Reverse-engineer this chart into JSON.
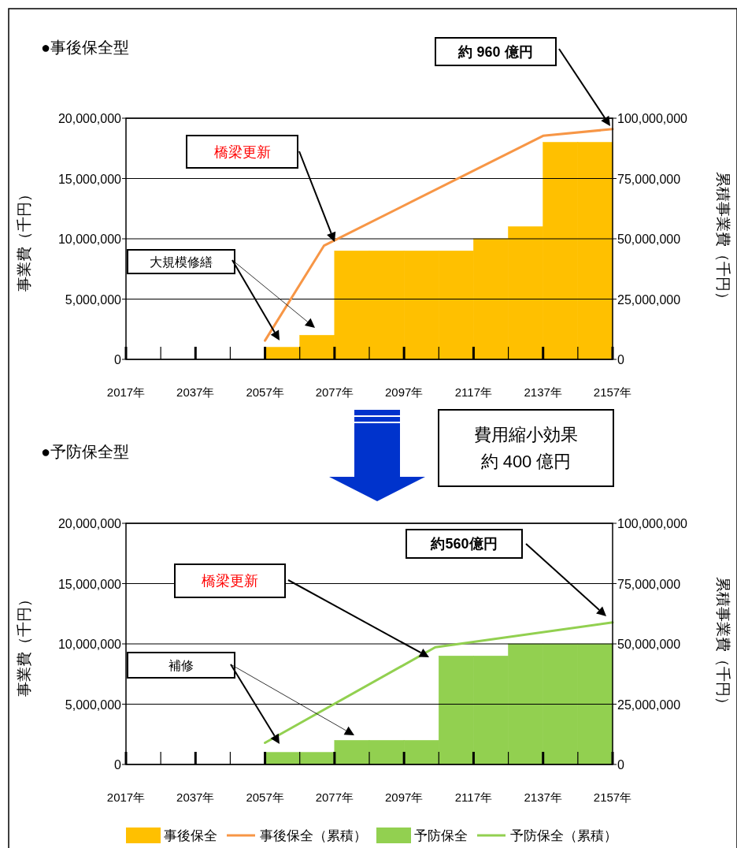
{
  "chart_data": [
    {
      "type": "bar",
      "title": "●事後保全型",
      "ylabel": "事業費（千円）",
      "y2label": "累積事業費（千円）",
      "xlim": [
        2017,
        2157
      ],
      "xticks": [
        {
          "value": 2017,
          "label": "2017年"
        },
        {
          "value": 2027,
          "label": null
        },
        {
          "value": 2037,
          "label": "2037年"
        },
        {
          "value": 2047,
          "label": null
        },
        {
          "value": 2057,
          "label": "2057年"
        },
        {
          "value": 2067,
          "label": null
        },
        {
          "value": 2077,
          "label": "2077年"
        },
        {
          "value": 2087,
          "label": null
        },
        {
          "value": 2097,
          "label": "2097年"
        },
        {
          "value": 2107,
          "label": null
        },
        {
          "value": 2117,
          "label": "2117年"
        },
        {
          "value": 2127,
          "label": null
        },
        {
          "value": 2137,
          "label": "2137年"
        },
        {
          "value": 2147,
          "label": null
        },
        {
          "value": 2157,
          "label": "2157年"
        }
      ],
      "ylim": [
        0,
        20000000
      ],
      "yticks": [
        0,
        {
          "value": 5000000,
          "label": "5,000,000"
        },
        {
          "value": 10000000,
          "label": "10,000,000"
        },
        {
          "value": 15000000,
          "label": "15,000,000"
        },
        {
          "value": 20000000,
          "label": "20,000,000"
        }
      ],
      "y2lim": [
        0,
        100000000
      ],
      "y2ticks": [
        0,
        {
          "value": 25000000,
          "label": "25,000,000"
        },
        {
          "value": 50000000,
          "label": "50,000,000"
        },
        {
          "value": 75000000,
          "label": "75,000,000"
        },
        {
          "value": 100000000,
          "label": "100,000,000"
        }
      ],
      "grid": "y",
      "legend": "bottom",
      "series": [
        {
          "name": "事後保全",
          "color": "#ffc000",
          "x": [
            2022,
            2032,
            2042,
            2052,
            2062,
            2072,
            2082,
            2092,
            2102,
            2112,
            2122,
            2132,
            2142,
            2152
          ],
          "values": [
            0,
            0,
            0,
            0,
            1000000,
            2000000,
            9000000,
            9000000,
            9000000,
            9000000,
            10000000,
            11000000,
            18000000,
            18000000
          ]
        },
        {
          "name": "事後保全（累積）",
          "type": "line",
          "axis": "y2",
          "color": "#f79646",
          "x": [
            2057,
            2074,
            2137,
            2157
          ],
          "values": [
            7800000,
            47200000,
            92700000,
            95500000
          ]
        }
      ],
      "annotations": [
        "大規模修繕",
        "橋梁更新",
        "約 960 億円"
      ]
    },
    {
      "type": "bar",
      "title": "●予防保全型",
      "ylabel": "事業費（千円）",
      "y2label": "累積事業費（千円）",
      "xlim": [
        2017,
        2157
      ],
      "xticks": [
        {
          "value": 2017,
          "label": "2017年"
        },
        {
          "value": 2027,
          "label": null
        },
        {
          "value": 2037,
          "label": "2037年"
        },
        {
          "value": 2047,
          "label": null
        },
        {
          "value": 2057,
          "label": "2057年"
        },
        {
          "value": 2067,
          "label": null
        },
        {
          "value": 2077,
          "label": "2077年"
        },
        {
          "value": 2087,
          "label": null
        },
        {
          "value": 2097,
          "label": "2097年"
        },
        {
          "value": 2107,
          "label": null
        },
        {
          "value": 2117,
          "label": "2117年"
        },
        {
          "value": 2127,
          "label": null
        },
        {
          "value": 2137,
          "label": "2137年"
        },
        {
          "value": 2147,
          "label": null
        },
        {
          "value": 2157,
          "label": "2157年"
        }
      ],
      "ylim": [
        0,
        20000000
      ],
      "yticks": [
        0,
        {
          "value": 5000000,
          "label": "5,000,000"
        },
        {
          "value": 10000000,
          "label": "10,000,000"
        },
        {
          "value": 15000000,
          "label": "15,000,000"
        },
        {
          "value": 20000000,
          "label": "20,000,000"
        }
      ],
      "y2lim": [
        0,
        100000000
      ],
      "y2ticks": [
        0,
        {
          "value": 25000000,
          "label": "25,000,000"
        },
        {
          "value": 50000000,
          "label": "50,000,000"
        },
        {
          "value": 75000000,
          "label": "75,000,000"
        },
        {
          "value": 100000000,
          "label": "100,000,000"
        }
      ],
      "grid": "y",
      "legend": "bottom",
      "series": [
        {
          "name": "予防保全",
          "color": "#92d050",
          "x": [
            2022,
            2032,
            2042,
            2052,
            2062,
            2072,
            2082,
            2092,
            2102,
            2112,
            2122,
            2132,
            2142,
            2152
          ],
          "values": [
            0,
            0,
            0,
            0,
            1000000,
            1000000,
            2000000,
            2000000,
            2000000,
            9000000,
            9000000,
            10000000,
            10000000,
            10000000
          ]
        },
        {
          "name": "予防保全（累積）",
          "type": "line",
          "axis": "y2",
          "color": "#92d050",
          "x": [
            2057,
            2106,
            2157
          ],
          "values": [
            9000000,
            48600000,
            58900000
          ]
        }
      ],
      "annotations": [
        "補修",
        "橋梁更新",
        "約560億円",
        "費用縮小効果",
        "約 400 億円"
      ]
    }
  ]
}
